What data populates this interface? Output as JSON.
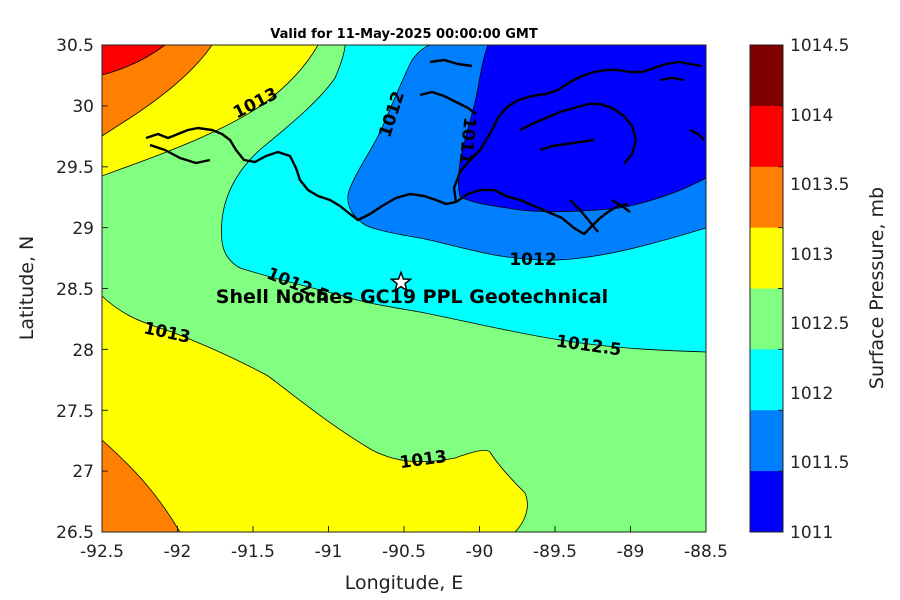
{
  "title": "Valid for 11-May-2025 00:00:00 GMT",
  "x_axis": {
    "label": "Longitude, E",
    "ticks": [
      "-92.5",
      "-92",
      "-91.5",
      "-91",
      "-90.5",
      "-90",
      "-89.5",
      "-89",
      "-88.5"
    ]
  },
  "y_axis": {
    "label": "Latitude, N",
    "ticks": [
      "30.5",
      "30",
      "29.5",
      "29",
      "28.5",
      "28",
      "27.5",
      "27",
      "26.5"
    ]
  },
  "colorbar": {
    "label": "Surface Pressure, mb",
    "ticks": [
      "1014.5",
      "1014",
      "1013.5",
      "1013",
      "1012.5",
      "1012",
      "1011.5",
      "1011"
    ],
    "levels": [
      {
        "range": "1014-1014.5",
        "color": "#800000"
      },
      {
        "range": "1013.5-1014",
        "color": "#ff0000"
      },
      {
        "range": "1013-1013.5",
        "color": "#ff8000"
      },
      {
        "range": "1012.5-1013",
        "color": "#ffff00"
      },
      {
        "range": "1012-1012.5",
        "color": "#80ff80"
      },
      {
        "range": "1011.5-1012",
        "color": "#00ffff"
      },
      {
        "range": "1011-1011.5",
        "color": "#0080ff"
      },
      {
        "range": "below 1011",
        "color": "#0000ff"
      }
    ]
  },
  "contour_labels": [
    "1013",
    "1012",
    "1011",
    "1012",
    "1012.5",
    "1013",
    "1012.5",
    "1013"
  ],
  "site": {
    "label": "Shell Noches   GC19 PPL  Geotechnical",
    "longitude": -90.52,
    "latitude": 28.55,
    "marker": "star-icon"
  }
}
